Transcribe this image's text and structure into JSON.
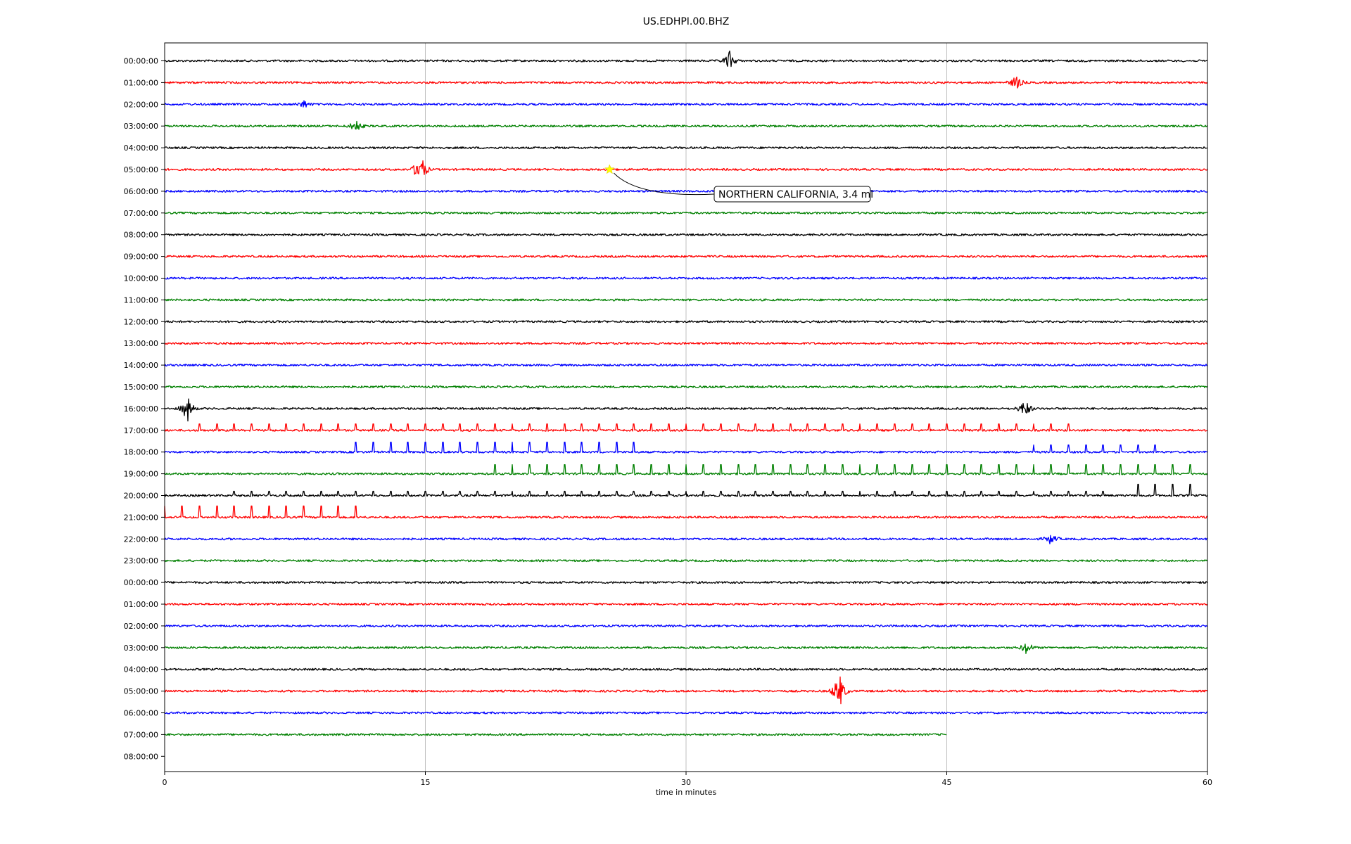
{
  "chart_data": {
    "type": "line",
    "title": "US.EDHPI.00.BHZ",
    "xlabel": "time in minutes",
    "ylabel": "",
    "xlim": [
      0,
      60
    ],
    "x_ticks": [
      "0",
      "15",
      "30",
      "45",
      "60"
    ],
    "x_tick_values": [
      0,
      15,
      30,
      45,
      60
    ],
    "grid": "vertical",
    "trace_colors": [
      "#000000",
      "#ff0000",
      "#0000ff",
      "#008000"
    ],
    "row_labels": [
      "00:00:00",
      "01:00:00",
      "02:00:00",
      "03:00:00",
      "04:00:00",
      "05:00:00",
      "06:00:00",
      "07:00:00",
      "08:00:00",
      "09:00:00",
      "10:00:00",
      "11:00:00",
      "12:00:00",
      "13:00:00",
      "14:00:00",
      "15:00:00",
      "16:00:00",
      "17:00:00",
      "18:00:00",
      "19:00:00",
      "20:00:00",
      "21:00:00",
      "22:00:00",
      "23:00:00",
      "00:00:00",
      "01:00:00",
      "02:00:00",
      "03:00:00",
      "04:00:00",
      "05:00:00",
      "06:00:00",
      "07:00:00",
      "08:00:00"
    ],
    "traces_end_minute": {
      "row": 31,
      "minute": 45
    },
    "event": {
      "row": 5,
      "minute": 25.6,
      "label": "NORTHERN CALIFORNIA, 3.4 ml",
      "marker_color": "#ffff00"
    },
    "notable_signals": [
      {
        "row": 0,
        "minute": 32.5,
        "amplitude": 14
      },
      {
        "row": 1,
        "minute": 49,
        "amplitude": 11
      },
      {
        "row": 2,
        "minute": 8,
        "amplitude": 6
      },
      {
        "row": 3,
        "minute": 11,
        "amplitude": 10
      },
      {
        "row": 5,
        "minute": 14.7,
        "amplitude": 28
      },
      {
        "row": 16,
        "minute": 1.3,
        "amplitude": 20
      },
      {
        "row": 16,
        "minute": 49.5,
        "amplitude": 14
      },
      {
        "row": 22,
        "minute": 51,
        "amplitude": 8
      },
      {
        "row": 27,
        "minute": 49.6,
        "amplitude": 10
      },
      {
        "row": 29,
        "minute": 38.8,
        "amplitude": 30
      }
    ],
    "spike_trains": [
      {
        "row": 17,
        "start": 2,
        "end": 52,
        "step": 1,
        "amplitude": 9,
        "direction": "up"
      },
      {
        "row": 18,
        "start": 11,
        "end": 27,
        "step": 1,
        "amplitude": 14,
        "direction": "up"
      },
      {
        "row": 18,
        "start": 50,
        "end": 57,
        "step": 1,
        "amplitude": 10,
        "direction": "up"
      },
      {
        "row": 19,
        "start": 19,
        "end": 59,
        "step": 1,
        "amplitude": 13,
        "direction": "up"
      },
      {
        "row": 20,
        "start": 4,
        "end": 54,
        "step": 1,
        "amplitude": 6,
        "direction": "up"
      },
      {
        "row": 20,
        "start": 56,
        "end": 59,
        "step": 1,
        "amplitude": 16,
        "direction": "up"
      },
      {
        "row": 21,
        "start": 0,
        "end": 11,
        "step": 1,
        "amplitude": 16,
        "direction": "up"
      }
    ]
  }
}
